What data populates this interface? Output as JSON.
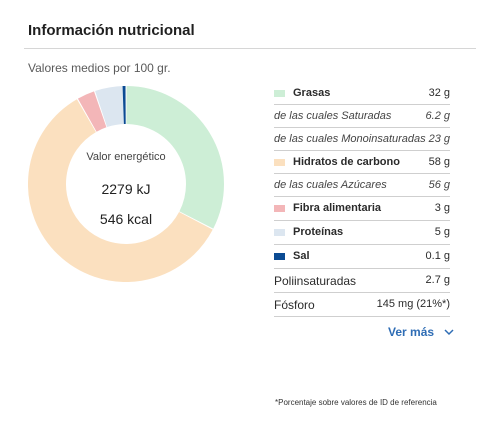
{
  "header": {
    "title": "Información nutricional"
  },
  "subtitle": "Valores medios por 100 gr.",
  "energy": {
    "label": "Valor energético",
    "kj": "2279 kJ",
    "kcal": "546 kcal"
  },
  "colors": {
    "grasas": "#cdeed6",
    "hidratos": "#fbe0bf",
    "fibra": "#f3b6b8",
    "proteinas": "#dce6f0",
    "sal": "#0b4b93"
  },
  "donut_percent": {
    "grasas": 32,
    "hidratos": 58,
    "fibra": 3,
    "proteinas": 5,
    "sal": 0.1
  },
  "rows": [
    {
      "name": "Grasas",
      "value": "32 g"
    },
    {
      "name": "de las cuales Saturadas",
      "value": "6.2 g"
    },
    {
      "name": "de las cuales Monoinsaturadas",
      "value": "23 g"
    },
    {
      "name": "Hidratos de carbono",
      "value": "58 g"
    },
    {
      "name": "de las cuales Azúcares",
      "value": "56 g"
    },
    {
      "name": "Fibra alimentaria",
      "value": "3 g"
    },
    {
      "name": "Proteínas",
      "value": "5 g"
    },
    {
      "name": "Sal",
      "value": "0.1 g"
    },
    {
      "name": "Poliinsaturadas",
      "value": "2.7 g"
    },
    {
      "name": "Fósforo",
      "value": "145 mg (21%*)"
    }
  ],
  "ver_mas": "Ver más",
  "footnote": "*Porcentaje sobre valores de ID de referencia"
}
